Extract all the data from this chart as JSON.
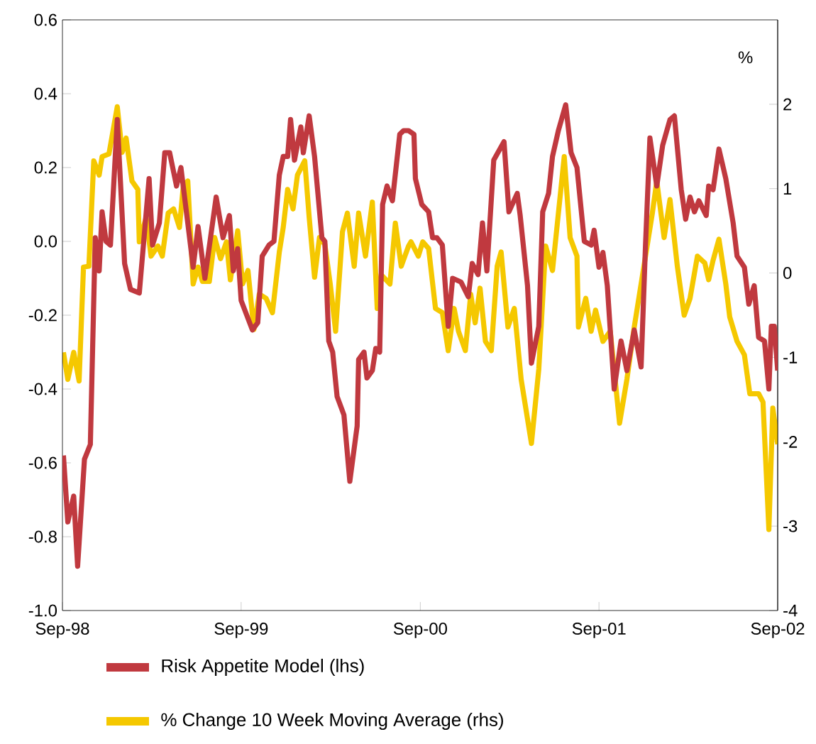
{
  "chart_data": {
    "type": "line",
    "xlim": [
      "1998-09",
      "2002-09"
    ],
    "xticks": [
      {
        "value": "1998-09",
        "label": "Sep-98"
      },
      {
        "value": "1999-09",
        "label": "Sep-99"
      },
      {
        "value": "2000-09",
        "label": "Sep-00"
      },
      {
        "value": "2001-09",
        "label": "Sep-01"
      },
      {
        "value": "2002-09",
        "label": "Sep-02"
      }
    ],
    "ylim": [
      -1.0,
      0.6
    ],
    "yticks": [
      {
        "value": -1.0,
        "label": "-1.0"
      },
      -0.8,
      -0.6,
      -0.4,
      -0.2,
      {
        "value": 0,
        "label": "0.0"
      },
      0.2,
      0.4,
      0.6
    ],
    "y2lim": [
      -4,
      3
    ],
    "y2ticks": [
      -4,
      -3,
      -2,
      -1,
      0,
      1,
      2
    ],
    "y2label": "%",
    "legend": "bottom",
    "series": [
      {
        "name": "Risk Appetite Model (lhs)",
        "color": "#c0393f",
        "x": [
          "1998-09-03",
          "1998-09-12",
          "1998-09-24",
          "1998-10-02",
          "1998-10-16",
          "1998-10-28",
          "1998-11-07",
          "1998-11-15",
          "1998-11-21",
          "1998-11-29",
          "1998-12-08",
          "1998-12-22",
          "1999-01-06",
          "1999-01-18",
          "1999-02-05",
          "1999-02-25",
          "1999-03-04",
          "1999-03-18",
          "1999-03-29",
          "1999-04-08",
          "1999-04-22",
          "1999-05-01",
          "1999-05-15",
          "1999-05-26",
          "1999-06-05",
          "1999-06-19",
          "1999-07-12",
          "1999-07-26",
          "1999-08-08",
          "1999-08-16",
          "1999-08-25",
          "1999-09-01",
          "1999-09-24",
          "1999-10-05",
          "1999-10-14",
          "1999-10-28",
          "1999-11-07",
          "1999-11-18",
          "1999-11-26",
          "1999-12-05",
          "1999-12-11",
          "1999-12-19",
          "2000-01-01",
          "2000-01-06",
          "2000-01-18",
          "2000-01-29",
          "2000-02-13",
          "2000-02-19",
          "2000-02-27",
          "2000-03-06",
          "2000-03-15",
          "2000-03-29",
          "2000-04-10",
          "2000-04-25",
          "2000-04-28",
          "2000-05-09",
          "2000-05-15",
          "2000-05-26",
          "2000-06-02",
          "2000-06-10",
          "2000-06-16",
          "2000-06-25",
          "2000-07-06",
          "2000-07-21",
          "2000-07-29",
          "2000-08-08",
          "2000-08-19",
          "2000-08-22",
          "2000-09-04",
          "2000-09-18",
          "2000-09-26",
          "2000-10-05",
          "2000-10-16",
          "2000-10-28",
          "2000-11-06",
          "2000-11-23",
          "2000-12-08",
          "2000-12-16",
          "2000-12-28",
          "2001-01-06",
          "2001-01-15",
          "2001-01-29",
          "2001-02-19",
          "2001-03-01",
          "2001-03-18",
          "2001-03-24",
          "2001-04-08",
          "2001-04-16",
          "2001-05-01",
          "2001-05-09",
          "2001-05-21",
          "2001-05-29",
          "2001-06-10",
          "2001-06-25",
          "2001-07-06",
          "2001-07-18",
          "2001-08-02",
          "2001-08-16",
          "2001-08-22",
          "2001-09-01",
          "2001-09-09",
          "2001-09-18",
          "2001-10-02",
          "2001-10-16",
          "2001-10-28",
          "2001-11-12",
          "2001-11-26",
          "2001-12-05",
          "2001-12-14",
          "2001-12-28",
          "2002-01-09",
          "2002-01-24",
          "2002-02-02",
          "2002-02-16",
          "2002-02-25",
          "2002-03-06",
          "2002-03-15",
          "2002-03-24",
          "2002-04-08",
          "2002-04-13",
          "2002-04-22",
          "2002-05-04",
          "2002-05-18",
          "2002-06-02",
          "2002-06-10",
          "2002-06-25",
          "2002-07-04",
          "2002-07-15",
          "2002-07-24",
          "2002-08-05",
          "2002-08-14",
          "2002-08-19",
          "2002-08-25",
          "2002-09-01"
        ],
        "values": [
          -0.58,
          -0.76,
          -0.69,
          -0.88,
          -0.59,
          -0.55,
          0.01,
          -0.08,
          0.08,
          0.0,
          -0.01,
          0.33,
          -0.06,
          -0.13,
          -0.14,
          0.17,
          -0.01,
          0.05,
          0.24,
          0.24,
          0.15,
          0.2,
          0.05,
          -0.07,
          0.04,
          -0.1,
          0.12,
          0.01,
          0.07,
          -0.08,
          -0.02,
          -0.16,
          -0.24,
          -0.22,
          -0.04,
          -0.01,
          0.0,
          0.18,
          0.23,
          0.23,
          0.33,
          0.22,
          0.31,
          0.24,
          0.34,
          0.23,
          0.01,
          0.0,
          -0.27,
          -0.3,
          -0.42,
          -0.47,
          -0.65,
          -0.5,
          -0.32,
          -0.3,
          -0.37,
          -0.35,
          -0.29,
          -0.3,
          0.1,
          0.15,
          0.11,
          0.29,
          0.3,
          0.3,
          0.29,
          0.17,
          0.1,
          0.08,
          0.01,
          0.01,
          -0.01,
          -0.23,
          -0.1,
          -0.11,
          -0.15,
          -0.06,
          -0.09,
          0.05,
          -0.08,
          0.22,
          0.27,
          0.08,
          0.13,
          0.07,
          -0.12,
          -0.33,
          -0.23,
          0.08,
          0.13,
          0.23,
          0.3,
          0.37,
          0.24,
          0.2,
          0.0,
          -0.01,
          0.03,
          -0.07,
          -0.03,
          -0.12,
          -0.4,
          -0.27,
          -0.35,
          -0.24,
          -0.34,
          -0.01,
          0.28,
          0.15,
          0.26,
          0.33,
          0.34,
          0.14,
          0.06,
          0.12,
          0.08,
          0.11,
          0.07,
          0.15,
          0.14,
          0.25,
          0.17,
          0.05,
          -0.04,
          -0.07,
          -0.17,
          -0.12,
          -0.26,
          -0.27,
          -0.4,
          -0.23,
          -0.23,
          -0.35
        ]
      },
      {
        "name": "% Change 10 Week Moving Average (rhs)",
        "color": "#f5c800",
        "axis": "y2",
        "x": [
          "1998-09-03",
          "1998-09-12",
          "1998-09-24",
          "1998-10-05",
          "1998-10-14",
          "1998-10-25",
          "1998-11-04",
          "1998-11-15",
          "1998-11-21",
          "1998-12-05",
          "1998-12-22",
          "1999-01-01",
          "1999-01-09",
          "1999-01-21",
          "1999-02-02",
          "1999-02-05",
          "1999-02-19",
          "1999-03-01",
          "1999-03-15",
          "1999-03-24",
          "1999-04-05",
          "1999-04-16",
          "1999-04-28",
          "1999-05-06",
          "1999-05-15",
          "1999-05-26",
          "1999-06-05",
          "1999-06-14",
          "1999-06-28",
          "1999-07-09",
          "1999-07-21",
          "1999-08-02",
          "1999-08-10",
          "1999-08-25",
          "1999-09-04",
          "1999-09-15",
          "1999-09-27",
          "1999-10-08",
          "1999-10-22",
          "1999-11-04",
          "1999-11-18",
          "1999-11-26",
          "1999-12-05",
          "1999-12-16",
          "1999-12-25",
          "2000-01-09",
          "2000-01-18",
          "2000-01-29",
          "2000-02-08",
          "2000-02-19",
          "2000-03-01",
          "2000-03-12",
          "2000-03-26",
          "2000-04-05",
          "2000-04-19",
          "2000-04-28",
          "2000-05-12",
          "2000-05-26",
          "2000-06-05",
          "2000-06-13",
          "2000-07-01",
          "2000-07-12",
          "2000-07-24",
          "2000-08-08",
          "2000-08-13",
          "2000-08-28",
          "2000-09-06",
          "2000-09-18",
          "2000-10-02",
          "2000-10-16",
          "2000-10-28",
          "2000-11-09",
          "2000-11-18",
          "2000-12-02",
          "2000-12-13",
          "2000-12-22",
          "2001-01-01",
          "2001-01-12",
          "2001-01-24",
          "2001-02-05",
          "2001-02-13",
          "2001-02-27",
          "2001-03-12",
          "2001-03-26",
          "2001-04-16",
          "2001-05-01",
          "2001-05-15",
          "2001-05-29",
          "2001-06-22",
          "2001-07-04",
          "2001-07-18",
          "2001-07-21",
          "2001-08-05",
          "2001-08-16",
          "2001-08-25",
          "2001-09-09",
          "2001-09-24",
          "2001-10-13",
          "2001-10-28",
          "2001-11-12",
          "2001-11-29",
          "2001-12-19",
          "2001-12-28",
          "2002-01-12",
          "2002-01-24",
          "2002-02-08",
          "2002-02-22",
          "2002-03-06",
          "2002-03-21",
          "2002-04-05",
          "2002-04-13",
          "2002-04-22",
          "2002-05-04",
          "2002-05-18",
          "2002-05-26",
          "2002-06-10",
          "2002-06-25",
          "2002-07-06",
          "2002-07-24",
          "2002-08-02",
          "2002-08-14",
          "2002-08-22",
          "2002-09-01"
        ],
        "values": [
          -0.94,
          -1.26,
          -0.94,
          -1.28,
          0.07,
          0.08,
          1.33,
          1.16,
          1.38,
          1.41,
          1.97,
          1.43,
          1.6,
          1.09,
          0.99,
          0.37,
          0.66,
          0.2,
          0.32,
          0.2,
          0.71,
          0.76,
          0.54,
          1.04,
          1.09,
          -0.13,
          0.07,
          -0.1,
          -0.1,
          0.42,
          0.17,
          0.37,
          -0.08,
          0.5,
          -0.13,
          0.03,
          -0.67,
          -0.25,
          -0.3,
          -0.47,
          0.25,
          0.54,
          0.99,
          0.76,
          1.16,
          1.33,
          0.66,
          -0.05,
          0.42,
          0.34,
          -0.13,
          -0.69,
          0.49,
          0.71,
          0.08,
          0.71,
          0.2,
          0.84,
          -0.42,
          -0.02,
          -0.13,
          0.59,
          0.08,
          0.32,
          0.37,
          0.2,
          0.37,
          0.29,
          -0.42,
          -0.47,
          -0.92,
          -0.42,
          -0.69,
          -0.92,
          -0.25,
          -0.59,
          -0.18,
          -0.81,
          -0.92,
          0.08,
          0.25,
          -0.64,
          -0.42,
          -1.26,
          -2.02,
          -1.14,
          0.32,
          0.03,
          1.38,
          0.42,
          0.2,
          -0.64,
          -0.3,
          -0.69,
          -0.44,
          -0.81,
          -0.69,
          -1.78,
          -1.26,
          -0.64,
          -0.02,
          0.71,
          1.09,
          0.42,
          0.87,
          0.08,
          -0.5,
          -0.3,
          0.2,
          0.12,
          -0.08,
          0.15,
          0.4,
          -0.13,
          -0.52,
          -0.81,
          -0.97,
          -1.43,
          -1.43,
          -1.53,
          -3.04,
          -1.6,
          -2.03
        ]
      }
    ]
  }
}
